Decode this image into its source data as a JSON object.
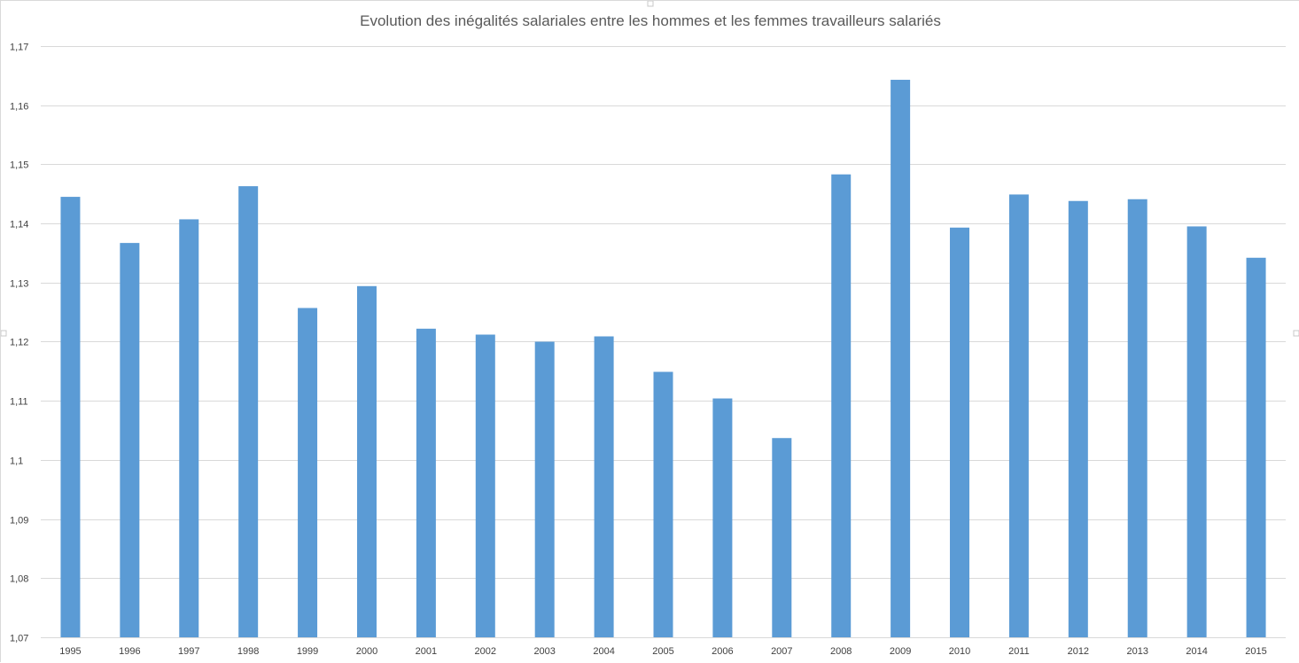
{
  "chart_data": {
    "type": "bar",
    "title": "Evolution des inégalités salariales entre les hommes et les femmes travailleurs salariés",
    "xlabel": "",
    "ylabel": "",
    "categories": [
      "1995",
      "1996",
      "1997",
      "1998",
      "1999",
      "2000",
      "2001",
      "2002",
      "2003",
      "2004",
      "2005",
      "2006",
      "2007",
      "2008",
      "2009",
      "2010",
      "2011",
      "2012",
      "2013",
      "2014",
      "2015"
    ],
    "values": [
      1.1445,
      1.1367,
      1.1407,
      1.1463,
      1.1257,
      1.1294,
      1.1222,
      1.1212,
      1.12,
      1.1209,
      1.1149,
      1.1104,
      1.1037,
      1.1483,
      1.1643,
      1.1393,
      1.1449,
      1.1438,
      1.1441,
      1.1395,
      1.1342
    ],
    "ylim": [
      1.07,
      1.17
    ],
    "yticks": [
      1.07,
      1.08,
      1.09,
      1.1,
      1.11,
      1.12,
      1.13,
      1.14,
      1.15,
      1.16,
      1.17
    ],
    "ytick_labels": [
      "1,07",
      "1,08",
      "1,09",
      "1,1",
      "1,11",
      "1,12",
      "1,13",
      "1,14",
      "1,15",
      "1,16",
      "1,17"
    ],
    "grid": true,
    "legend": "none",
    "bar_color": "#5b9bd5",
    "grid_color": "#d9d9d9"
  }
}
